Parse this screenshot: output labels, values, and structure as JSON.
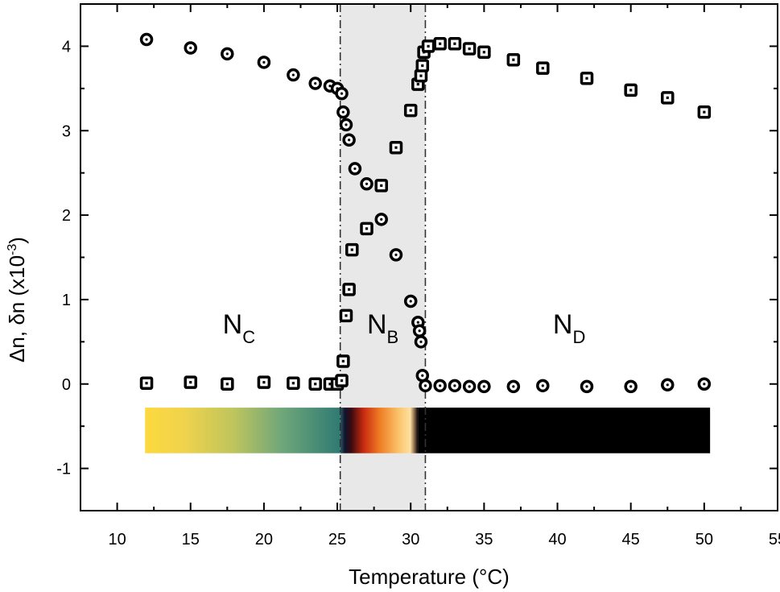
{
  "chart_data": {
    "type": "scatter",
    "title": "",
    "xlabel": "Temperature (°C)",
    "ylabel": "Δn, δn (x10",
    "ylabel_exponent": "-3",
    "ylabel_close": ")",
    "xlim": [
      7.5,
      55
    ],
    "ylim": [
      -1.5,
      4.5
    ],
    "x_ticks": [
      10,
      15,
      20,
      25,
      30,
      35,
      40,
      45,
      50,
      55
    ],
    "y_ticks": [
      -1,
      0,
      1,
      2,
      3,
      4
    ],
    "x_tick_labels": [
      "10",
      "15",
      "20",
      "25",
      "30",
      "35",
      "40",
      "45",
      "50",
      "55"
    ],
    "y_tick_labels": [
      "-1",
      "0",
      "1",
      "2",
      "3",
      "4"
    ],
    "grid": false,
    "shaded_region": {
      "x_range": [
        25.2,
        31.0
      ],
      "color": "#e8e8e8"
    },
    "phases": [
      {
        "main": "N",
        "sub": "C",
        "x": 18.3,
        "y": 0.6
      },
      {
        "main": "N",
        "sub": "B",
        "x": 28.1,
        "y": 0.6
      },
      {
        "main": "N",
        "sub": "D",
        "x": 40.8,
        "y": 0.6
      }
    ],
    "color_bar": {
      "x_range": [
        11.9,
        50.4
      ],
      "y_range": [
        -0.82,
        -0.28
      ]
    },
    "series": [
      {
        "marker": "circle",
        "points": [
          [
            12,
            4.08
          ],
          [
            15,
            3.98
          ],
          [
            17.5,
            3.91
          ],
          [
            20,
            3.81
          ],
          [
            22,
            3.66
          ],
          [
            23.5,
            3.56
          ],
          [
            24.5,
            3.53
          ],
          [
            25,
            3.5
          ],
          [
            25.3,
            3.44
          ],
          [
            25.4,
            3.22
          ],
          [
            25.6,
            3.07
          ],
          [
            25.8,
            2.89
          ],
          [
            26.2,
            2.55
          ],
          [
            27,
            2.37
          ],
          [
            28,
            1.95
          ],
          [
            29,
            1.53
          ],
          [
            30,
            0.98
          ],
          [
            30.5,
            0.73
          ],
          [
            30.6,
            0.63
          ],
          [
            30.7,
            0.5
          ],
          [
            30.8,
            0.1
          ],
          [
            31,
            -0.02
          ],
          [
            32,
            -0.02
          ],
          [
            33,
            -0.02
          ],
          [
            34,
            -0.03
          ],
          [
            35,
            -0.03
          ],
          [
            37,
            -0.03
          ],
          [
            39,
            -0.02
          ],
          [
            42,
            -0.03
          ],
          [
            45,
            -0.03
          ],
          [
            47.5,
            -0.01
          ],
          [
            50,
            0.0
          ]
        ]
      },
      {
        "marker": "square",
        "points": [
          [
            12,
            0.01
          ],
          [
            15,
            0.02
          ],
          [
            17.5,
            0.0
          ],
          [
            20,
            0.02
          ],
          [
            22,
            0.01
          ],
          [
            23.5,
            0.0
          ],
          [
            24.5,
            0.0
          ],
          [
            25,
            0.0
          ],
          [
            25.3,
            0.04
          ],
          [
            25.4,
            0.27
          ],
          [
            25.6,
            0.81
          ],
          [
            25.8,
            1.12
          ],
          [
            26,
            1.59
          ],
          [
            27,
            1.84
          ],
          [
            28,
            2.35
          ],
          [
            29,
            2.8
          ],
          [
            30,
            3.24
          ],
          [
            30.5,
            3.55
          ],
          [
            30.7,
            3.65
          ],
          [
            30.8,
            3.77
          ],
          [
            30.9,
            3.93
          ],
          [
            31.2,
            4.0
          ],
          [
            32,
            4.03
          ],
          [
            33,
            4.03
          ],
          [
            34,
            3.97
          ],
          [
            35,
            3.93
          ],
          [
            37,
            3.84
          ],
          [
            39,
            3.74
          ],
          [
            42,
            3.62
          ],
          [
            45,
            3.48
          ],
          [
            47.5,
            3.39
          ],
          [
            50,
            3.22
          ]
        ]
      }
    ]
  }
}
